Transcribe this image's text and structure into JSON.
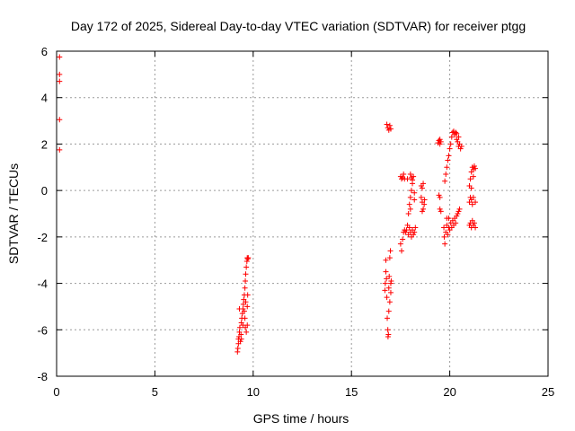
{
  "chart_data": {
    "type": "scatter",
    "title": "Day 172 of 2025, Sidereal Day-to-day VTEC variation (SDTVAR) for receiver ptgg",
    "xlabel": "GPS time / hours",
    "ylabel": "SDTVAR / TECUs",
    "xlim": [
      0,
      25
    ],
    "ylim": [
      -8,
      6
    ],
    "xticks": [
      0,
      5,
      10,
      15,
      20,
      25
    ],
    "yticks": [
      -8,
      -6,
      -4,
      -2,
      0,
      2,
      4,
      6
    ],
    "xtick_labels": [
      "0",
      "5",
      "10",
      "15",
      "20",
      "25"
    ],
    "ytick_labels": [
      "-8",
      "-6",
      "-4",
      "-2",
      "0",
      "2",
      "4",
      "6"
    ],
    "grid": true,
    "marker": "+",
    "color": "#ff0000",
    "series": [
      {
        "name": "SDTVAR",
        "points": [
          [
            0.15,
            5.75
          ],
          [
            0.15,
            5.0
          ],
          [
            0.15,
            4.7
          ],
          [
            0.15,
            3.05
          ],
          [
            0.15,
            1.75
          ],
          [
            9.2,
            -6.95
          ],
          [
            9.22,
            -6.8
          ],
          [
            9.25,
            -6.6
          ],
          [
            9.25,
            -6.4
          ],
          [
            9.28,
            -6.3
          ],
          [
            9.3,
            -6.1
          ],
          [
            9.3,
            -5.1
          ],
          [
            9.32,
            -5.9
          ],
          [
            9.35,
            -6.5
          ],
          [
            9.38,
            -6.2
          ],
          [
            9.4,
            -5.7
          ],
          [
            9.42,
            -5.5
          ],
          [
            9.45,
            -5.3
          ],
          [
            9.48,
            -5.1
          ],
          [
            9.5,
            -4.9
          ],
          [
            9.52,
            -4.7
          ],
          [
            9.55,
            -4.5
          ],
          [
            9.55,
            -5.2
          ],
          [
            9.58,
            -4.2
          ],
          [
            9.6,
            -3.9
          ],
          [
            9.62,
            -3.6
          ],
          [
            9.65,
            -3.3
          ],
          [
            9.68,
            -3.05
          ],
          [
            9.7,
            -2.9
          ],
          [
            9.72,
            -2.95
          ],
          [
            9.75,
            -2.9
          ],
          [
            9.6,
            -5.9
          ],
          [
            9.65,
            -6.1
          ],
          [
            9.7,
            -5.8
          ],
          [
            9.72,
            -4.5
          ],
          [
            9.7,
            -5.0
          ],
          [
            9.62,
            -4.8
          ],
          [
            9.58,
            -5.5
          ],
          [
            9.48,
            -5.8
          ],
          [
            9.4,
            -6.4
          ],
          [
            16.7,
            -4.3
          ],
          [
            16.72,
            -4.0
          ],
          [
            16.75,
            -3.5
          ],
          [
            16.75,
            -3.0
          ],
          [
            16.78,
            -3.8
          ],
          [
            16.8,
            -4.6
          ],
          [
            16.82,
            -5.5
          ],
          [
            16.85,
            -6.0
          ],
          [
            16.88,
            -6.2
          ],
          [
            16.9,
            -4.2
          ],
          [
            16.92,
            -3.7
          ],
          [
            16.95,
            -2.9
          ],
          [
            16.98,
            -2.6
          ],
          [
            17.0,
            -4.4
          ],
          [
            17.0,
            -4.0
          ],
          [
            16.95,
            -4.8
          ],
          [
            16.9,
            -5.2
          ],
          [
            17.02,
            -3.9
          ],
          [
            16.86,
            -6.3
          ],
          [
            16.8,
            2.85
          ],
          [
            16.85,
            2.7
          ],
          [
            16.9,
            2.6
          ],
          [
            16.95,
            2.8
          ],
          [
            17.0,
            2.65
          ],
          [
            17.5,
            0.6
          ],
          [
            17.55,
            0.5
          ],
          [
            17.6,
            0.55
          ],
          [
            17.65,
            0.7
          ],
          [
            17.7,
            0.5
          ],
          [
            17.5,
            -2.3
          ],
          [
            17.55,
            -2.6
          ],
          [
            17.6,
            -2.1
          ],
          [
            17.65,
            -1.8
          ],
          [
            17.7,
            -1.7
          ],
          [
            17.75,
            -1.8
          ],
          [
            17.8,
            -1.7
          ],
          [
            17.85,
            -1.5
          ],
          [
            17.9,
            -1.9
          ],
          [
            17.95,
            -1.6
          ],
          [
            18.0,
            -1.8
          ],
          [
            18.05,
            -2.0
          ],
          [
            18.1,
            -1.7
          ],
          [
            18.15,
            -1.9
          ],
          [
            18.2,
            -1.8
          ],
          [
            17.9,
            -1.0
          ],
          [
            17.95,
            -0.6
          ],
          [
            18.0,
            -0.3
          ],
          [
            18.05,
            0.0
          ],
          [
            18.1,
            0.3
          ],
          [
            18.15,
            0.6
          ],
          [
            18.0,
            0.7
          ],
          [
            18.05,
            0.55
          ],
          [
            18.1,
            0.45
          ],
          [
            18.2,
            -0.4
          ],
          [
            17.85,
            0.5
          ],
          [
            18.2,
            -0.1
          ],
          [
            18.0,
            -0.8
          ],
          [
            18.25,
            -1.6
          ],
          [
            18.55,
            0.2
          ],
          [
            18.6,
            0.1
          ],
          [
            18.65,
            0.3
          ],
          [
            18.55,
            -0.3
          ],
          [
            18.6,
            -0.5
          ],
          [
            18.65,
            -0.8
          ],
          [
            18.7,
            -0.6
          ],
          [
            18.6,
            -0.9
          ],
          [
            18.72,
            -0.4
          ],
          [
            19.4,
            2.05
          ],
          [
            19.45,
            2.15
          ],
          [
            19.5,
            2.2
          ],
          [
            19.55,
            2.1
          ],
          [
            19.5,
            2.0
          ],
          [
            19.45,
            -0.2
          ],
          [
            19.5,
            -0.3
          ],
          [
            19.5,
            -0.8
          ],
          [
            19.55,
            -0.9
          ],
          [
            19.7,
            -1.6
          ],
          [
            19.72,
            -2.0
          ],
          [
            19.75,
            -2.3
          ],
          [
            19.8,
            -1.8
          ],
          [
            19.85,
            -1.5
          ],
          [
            19.9,
            -1.9
          ],
          [
            19.95,
            -1.6
          ],
          [
            20.0,
            -1.7
          ],
          [
            20.05,
            -1.4
          ],
          [
            20.1,
            -1.6
          ],
          [
            20.15,
            -1.3
          ],
          [
            20.2,
            -1.5
          ],
          [
            20.25,
            -1.2
          ],
          [
            20.3,
            -1.4
          ],
          [
            20.35,
            -1.1
          ],
          [
            20.4,
            -1.0
          ],
          [
            20.45,
            -0.9
          ],
          [
            20.5,
            -0.8
          ],
          [
            19.85,
            -1.2
          ],
          [
            19.95,
            -1.2
          ],
          [
            19.75,
            0.4
          ],
          [
            19.8,
            0.7
          ],
          [
            19.85,
            1.0
          ],
          [
            19.9,
            1.3
          ],
          [
            19.95,
            1.5
          ],
          [
            20.0,
            1.8
          ],
          [
            20.05,
            2.0
          ],
          [
            20.1,
            2.3
          ],
          [
            20.15,
            2.5
          ],
          [
            20.2,
            2.55
          ],
          [
            20.25,
            2.4
          ],
          [
            20.3,
            2.5
          ],
          [
            20.35,
            2.2
          ],
          [
            20.4,
            2.1
          ],
          [
            20.45,
            1.9
          ],
          [
            20.5,
            2.0
          ],
          [
            20.55,
            1.8
          ],
          [
            20.6,
            1.9
          ],
          [
            20.35,
            2.45
          ],
          [
            20.45,
            2.3
          ],
          [
            21.0,
            -0.5
          ],
          [
            21.05,
            -0.3
          ],
          [
            21.1,
            -0.4
          ],
          [
            21.15,
            -0.6
          ],
          [
            21.2,
            -0.3
          ],
          [
            21.3,
            -0.5
          ],
          [
            21.0,
            0.2
          ],
          [
            21.05,
            0.5
          ],
          [
            21.1,
            0.8
          ],
          [
            21.15,
            1.0
          ],
          [
            21.2,
            0.9
          ],
          [
            21.25,
            1.05
          ],
          [
            21.3,
            0.95
          ],
          [
            21.1,
            0.1
          ],
          [
            21.2,
            0.6
          ],
          [
            21.0,
            -1.5
          ],
          [
            21.05,
            -1.4
          ],
          [
            21.1,
            -1.6
          ],
          [
            21.15,
            -1.3
          ],
          [
            21.2,
            -1.5
          ],
          [
            21.25,
            -1.4
          ],
          [
            21.3,
            -1.6
          ]
        ]
      }
    ]
  }
}
